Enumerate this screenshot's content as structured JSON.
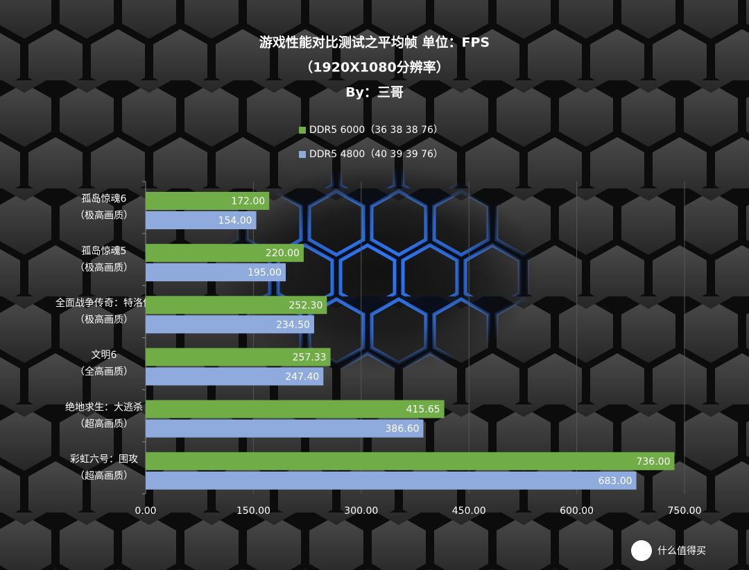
{
  "chart_data": {
    "type": "hbar",
    "title_lines": [
      "游戏性能对比测试之平均帧 单位：FPS",
      "（1920X1080分辨率）",
      "By：三哥"
    ],
    "categories": [
      [
        "孤岛惊魂6",
        "（极高画质）"
      ],
      [
        "孤岛惊魂5",
        "（极高画质）"
      ],
      [
        "全面战争传奇：特洛伊",
        "（极高画质）"
      ],
      [
        "文明6",
        "（全高画质）"
      ],
      [
        "绝地求生：大逃杀",
        "（超高画质）"
      ],
      [
        "彩虹六号：围攻",
        "（超高画质）"
      ]
    ],
    "series": [
      {
        "name": "DDR5 6000（36 38 38 76）",
        "color": "#70ad47",
        "values": [
          172,
          220,
          252.3,
          257.33,
          415.65,
          736
        ],
        "value_labels": [
          "172.00",
          "220.00",
          "252.30",
          "257.33",
          "415.65",
          "736.00"
        ]
      },
      {
        "name": "DDR5 4800（40 39 39 76）",
        "color": "#8faadc",
        "values": [
          154,
          195,
          234.5,
          247.4,
          386.6,
          683
        ],
        "value_labels": [
          "154.00",
          "195.00",
          "234.50",
          "247.40",
          "386.60",
          "683.00"
        ]
      }
    ],
    "xlim": [
      0,
      750
    ],
    "xticks": [
      {
        "value": 0,
        "label": "0.00"
      },
      {
        "value": 150,
        "label": "150.00"
      },
      {
        "value": 300,
        "label": "300.00"
      },
      {
        "value": 450,
        "label": "450.00"
      },
      {
        "value": 600,
        "label": "600.00"
      },
      {
        "value": 750,
        "label": "750.00"
      }
    ],
    "grid": true,
    "legend": "top",
    "watermark": "什么值得买"
  }
}
